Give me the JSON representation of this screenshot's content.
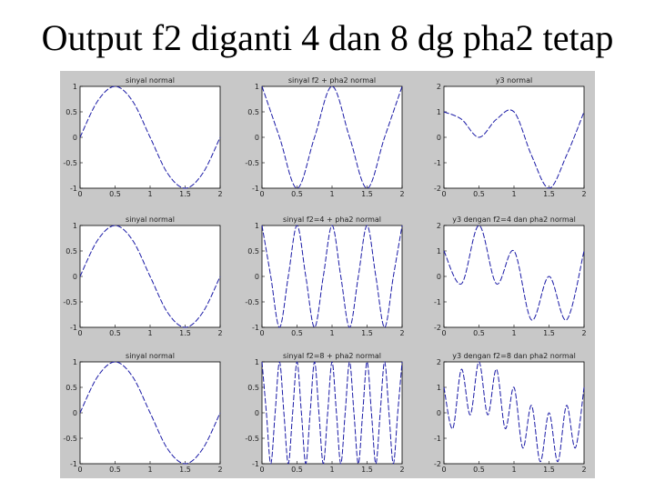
{
  "slide": {
    "title": "Output f2 diganti 4 dan 8 dg pha2 tetap"
  },
  "colors": {
    "figure_background": "#c8c8c8",
    "axes_background": "#ffffff",
    "line": "#1a1aa6"
  },
  "chart_data": [
    {
      "type": "line",
      "title": "sinyal normal",
      "xlabel": "",
      "ylabel": "",
      "series": [
        {
          "x": [
            0,
            0.25,
            0.5,
            0.75,
            1.0,
            1.25,
            1.5,
            1.75,
            2.0
          ],
          "y": [
            0,
            0.71,
            1,
            0.71,
            0,
            -0.71,
            -1,
            -0.71,
            0
          ]
        }
      ],
      "xlim": [
        0,
        2
      ],
      "ylim": [
        -1,
        1
      ],
      "xticks": [
        "0",
        "0.5",
        "1",
        "1.5",
        "2"
      ],
      "yticks": [
        "1",
        "0.5",
        "0",
        "-0.5",
        "-1"
      ]
    },
    {
      "type": "line",
      "title": "sinyal f2 + pha2 normal",
      "xlabel": "",
      "ylabel": "",
      "series": [
        {
          "x": [
            0,
            0.25,
            0.5,
            0.75,
            1.0,
            1.25,
            1.5,
            1.75,
            2.0
          ],
          "y": [
            1,
            0,
            -1,
            0,
            1,
            0,
            -1,
            0,
            1
          ]
        }
      ],
      "xlim": [
        0,
        2
      ],
      "ylim": [
        -1,
        1
      ],
      "xticks": [
        "0",
        "0.5",
        "1",
        "1.5",
        "2"
      ],
      "yticks": [
        "1",
        "0.5",
        "0",
        "-0.5",
        "-1"
      ]
    },
    {
      "type": "line",
      "title": "y3 normal",
      "xlabel": "",
      "ylabel": "",
      "series": [
        {
          "x": [
            0,
            0.25,
            0.5,
            0.75,
            1.0,
            1.25,
            1.5,
            1.75,
            2.0
          ],
          "y": [
            1,
            0.71,
            0,
            0.71,
            1,
            -0.71,
            -2,
            -0.71,
            1
          ]
        }
      ],
      "xlim": [
        0,
        2
      ],
      "ylim": [
        -2,
        2
      ],
      "xticks": [
        "0",
        "0.5",
        "1",
        "1.5",
        "2"
      ],
      "yticks": [
        "2",
        "1",
        "0",
        "-1",
        "-2"
      ]
    },
    {
      "type": "line",
      "title": "sinyal normal",
      "xlabel": "",
      "ylabel": "",
      "series": [
        {
          "x": [
            0,
            0.25,
            0.5,
            0.75,
            1.0,
            1.25,
            1.5,
            1.75,
            2.0
          ],
          "y": [
            0,
            0.71,
            1,
            0.71,
            0,
            -0.71,
            -1,
            -0.71,
            0
          ]
        }
      ],
      "xlim": [
        0,
        2
      ],
      "ylim": [
        -1,
        1
      ],
      "xticks": [
        "0",
        "0.5",
        "1",
        "1.5",
        "2"
      ],
      "yticks": [
        "1",
        "0.5",
        "0",
        "-0.5",
        "-1"
      ]
    },
    {
      "type": "line",
      "title": "sinyal f2=4 + pha2 normal",
      "xlabel": "",
      "ylabel": "",
      "series": [
        {
          "x": [
            0,
            0.125,
            0.25,
            0.375,
            0.5,
            0.625,
            0.75,
            0.875,
            1.0,
            1.125,
            1.25,
            1.375,
            1.5,
            1.625,
            1.75,
            1.875,
            2.0
          ],
          "y": [
            1,
            0,
            -1,
            0,
            1,
            0,
            -1,
            0,
            1,
            0,
            -1,
            0,
            1,
            0,
            -1,
            0,
            1
          ]
        }
      ],
      "xlim": [
        0,
        2
      ],
      "ylim": [
        -1,
        1
      ],
      "xticks": [
        "0",
        "0.5",
        "1",
        "1.5",
        "2"
      ],
      "yticks": [
        "1",
        "0.5",
        "0",
        "-0.5",
        "-1"
      ]
    },
    {
      "type": "line",
      "title": "y3 dengan f2=4 dan pha2 normal",
      "xlabel": "",
      "ylabel": "",
      "series": [
        {
          "x": [
            0,
            0.25,
            0.5,
            0.75,
            1.0,
            1.25,
            1.5,
            1.75,
            2.0
          ],
          "y": [
            1,
            -0.29,
            2,
            -0.29,
            1,
            -1.71,
            0,
            -1.71,
            1
          ]
        }
      ],
      "xlim": [
        0,
        2
      ],
      "ylim": [
        -2,
        2
      ],
      "xticks": [
        "0",
        "0.5",
        "1",
        "1.5",
        "2"
      ],
      "yticks": [
        "2",
        "1",
        "0",
        "-1",
        "-2"
      ]
    },
    {
      "type": "line",
      "title": "sinyal normal",
      "xlabel": "",
      "ylabel": "",
      "series": [
        {
          "x": [
            0,
            0.25,
            0.5,
            0.75,
            1.0,
            1.25,
            1.5,
            1.75,
            2.0
          ],
          "y": [
            0,
            0.71,
            1,
            0.71,
            0,
            -0.71,
            -1,
            -0.71,
            0
          ]
        }
      ],
      "xlim": [
        0,
        2
      ],
      "ylim": [
        -1,
        1
      ],
      "xticks": [
        "0",
        "0.5",
        "1",
        "1.5",
        "2"
      ],
      "yticks": [
        "1",
        "0.5",
        "0",
        "-0.5",
        "-1"
      ]
    },
    {
      "type": "line",
      "title": "sinyal f2=8 + pha2 normal",
      "xlabel": "",
      "ylabel": "",
      "series": [
        {
          "x": [
            0,
            0.0625,
            0.125,
            0.1875,
            0.25,
            0.3125,
            0.375,
            0.4375,
            0.5,
            0.5625,
            0.625,
            0.6875,
            0.75,
            0.8125,
            0.875,
            0.9375,
            1.0,
            1.0625,
            1.125,
            1.1875,
            1.25,
            1.3125,
            1.375,
            1.4375,
            1.5,
            1.5625,
            1.625,
            1.6875,
            1.75,
            1.8125,
            1.875,
            1.9375,
            2.0
          ],
          "y": [
            1,
            0,
            -1,
            0,
            1,
            0,
            -1,
            0,
            1,
            0,
            -1,
            0,
            1,
            0,
            -1,
            0,
            1,
            0,
            -1,
            0,
            1,
            0,
            -1,
            0,
            1,
            0,
            -1,
            0,
            1,
            0,
            -1,
            0,
            1
          ]
        }
      ],
      "xlim": [
        0,
        2
      ],
      "ylim": [
        -1,
        1
      ],
      "xticks": [
        "0",
        "0.5",
        "1",
        "1.5",
        "2"
      ],
      "yticks": [
        "1",
        "0.5",
        "0",
        "-0.5",
        "-1"
      ]
    },
    {
      "type": "line",
      "title": "y3 dengan f2=8 dan pha2 normal",
      "xlabel": "",
      "ylabel": "",
      "series": [
        {
          "x": [
            0,
            0.125,
            0.25,
            0.375,
            0.5,
            0.625,
            0.75,
            0.875,
            1.0,
            1.125,
            1.25,
            1.375,
            1.5,
            1.625,
            1.75,
            1.875,
            2.0
          ],
          "y": [
            1,
            -0.62,
            1.71,
            -0.08,
            2,
            -0.08,
            1.71,
            -0.62,
            1,
            -1.38,
            0.29,
            -1.92,
            0,
            -1.92,
            0.29,
            -1.38,
            1
          ]
        }
      ],
      "xlim": [
        0,
        2
      ],
      "ylim": [
        -2,
        2
      ],
      "xticks": [
        "0",
        "0.5",
        "1",
        "1.5",
        "2"
      ],
      "yticks": [
        "2",
        "1",
        "0",
        "-1",
        "-2"
      ]
    }
  ]
}
